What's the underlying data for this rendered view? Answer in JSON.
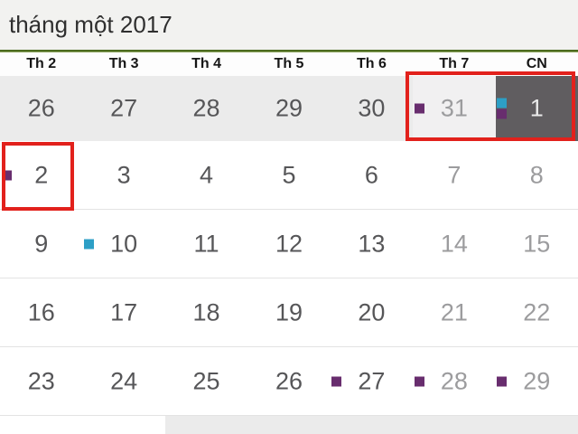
{
  "app": {
    "title": "tháng một 2017"
  },
  "calendar": {
    "day_headers": [
      "Th 2",
      "Th 3",
      "Th 4",
      "Th 5",
      "Th 6",
      "Th 7",
      "CN"
    ],
    "weeks": [
      {
        "days": [
          {
            "label": "26",
            "text": "normal",
            "bg": "gray",
            "markers": []
          },
          {
            "label": "27",
            "text": "normal",
            "bg": "gray",
            "markers": []
          },
          {
            "label": "28",
            "text": "normal",
            "bg": "gray",
            "markers": []
          },
          {
            "label": "29",
            "text": "normal",
            "bg": "gray",
            "markers": []
          },
          {
            "label": "30",
            "text": "normal",
            "bg": "gray",
            "markers": []
          },
          {
            "label": "31",
            "text": "muted",
            "bg": "highlight",
            "markers": [
              "purple"
            ]
          },
          {
            "label": "1",
            "text": "selected",
            "bg": "dark",
            "markers": [
              "cyan",
              "purple"
            ]
          }
        ]
      },
      {
        "days": [
          {
            "label": "2",
            "text": "normal",
            "bg": "white",
            "markers": [
              "purple"
            ]
          },
          {
            "label": "3",
            "text": "normal",
            "bg": "white",
            "markers": []
          },
          {
            "label": "4",
            "text": "normal",
            "bg": "white",
            "markers": []
          },
          {
            "label": "5",
            "text": "normal",
            "bg": "white",
            "markers": []
          },
          {
            "label": "6",
            "text": "normal",
            "bg": "white",
            "markers": []
          },
          {
            "label": "7",
            "text": "muted",
            "bg": "white",
            "markers": []
          },
          {
            "label": "8",
            "text": "muted",
            "bg": "white",
            "markers": []
          }
        ]
      },
      {
        "days": [
          {
            "label": "9",
            "text": "normal",
            "bg": "white",
            "markers": []
          },
          {
            "label": "10",
            "text": "normal",
            "bg": "white",
            "markers": [
              "cyan"
            ]
          },
          {
            "label": "11",
            "text": "normal",
            "bg": "white",
            "markers": []
          },
          {
            "label": "12",
            "text": "normal",
            "bg": "white",
            "markers": []
          },
          {
            "label": "13",
            "text": "normal",
            "bg": "white",
            "markers": []
          },
          {
            "label": "14",
            "text": "muted",
            "bg": "white",
            "markers": []
          },
          {
            "label": "15",
            "text": "muted",
            "bg": "white",
            "markers": []
          }
        ]
      },
      {
        "days": [
          {
            "label": "16",
            "text": "normal",
            "bg": "white",
            "markers": []
          },
          {
            "label": "17",
            "text": "normal",
            "bg": "white",
            "markers": []
          },
          {
            "label": "18",
            "text": "normal",
            "bg": "white",
            "markers": []
          },
          {
            "label": "19",
            "text": "normal",
            "bg": "white",
            "markers": []
          },
          {
            "label": "20",
            "text": "normal",
            "bg": "white",
            "markers": []
          },
          {
            "label": "21",
            "text": "muted",
            "bg": "white",
            "markers": []
          },
          {
            "label": "22",
            "text": "muted",
            "bg": "white",
            "markers": []
          }
        ]
      },
      {
        "days": [
          {
            "label": "23",
            "text": "normal",
            "bg": "white",
            "markers": []
          },
          {
            "label": "24",
            "text": "normal",
            "bg": "white",
            "markers": []
          },
          {
            "label": "25",
            "text": "normal",
            "bg": "white",
            "markers": []
          },
          {
            "label": "26",
            "text": "normal",
            "bg": "white",
            "markers": []
          },
          {
            "label": "27",
            "text": "normal",
            "bg": "white",
            "markers": [
              "purple"
            ]
          },
          {
            "label": "28",
            "text": "muted",
            "bg": "white",
            "markers": [
              "purple"
            ]
          },
          {
            "label": "29",
            "text": "muted",
            "bg": "white",
            "markers": [
              "purple"
            ]
          }
        ]
      },
      {
        "days": [
          {
            "label": "",
            "text": "normal",
            "bg": "white",
            "markers": []
          },
          {
            "label": "",
            "text": "normal",
            "bg": "white",
            "markers": []
          },
          {
            "label": "",
            "text": "normal",
            "bg": "gray",
            "markers": []
          },
          {
            "label": "",
            "text": "normal",
            "bg": "gray",
            "markers": []
          },
          {
            "label": "",
            "text": "normal",
            "bg": "gray",
            "markers": []
          },
          {
            "label": "",
            "text": "normal",
            "bg": "gray",
            "markers": []
          },
          {
            "label": "",
            "text": "normal",
            "bg": "gray",
            "markers": []
          }
        ]
      }
    ]
  },
  "annotations": [
    {
      "name": "highlight-dec31-jan1",
      "color": "#e2211c"
    },
    {
      "name": "highlight-jan2",
      "color": "#e2211c"
    }
  ],
  "colors": {
    "accent_green": "#4c6b1f",
    "accent_green_light": "#8fa662",
    "titlebar_bg": "#f2f2f0",
    "row_gray": "#ebebeb",
    "cell_highlight_gray": "#f1f0f1",
    "selected_day_bg": "#605d60",
    "day_text": "#565658",
    "muted_day_text": "#9c9c9e",
    "selected_day_text": "#ebebeb",
    "marker_purple": "#682d6e",
    "marker_cyan": "#2d9fc6",
    "annotation_red": "#e2211c",
    "separator": "#e3e3e3"
  }
}
